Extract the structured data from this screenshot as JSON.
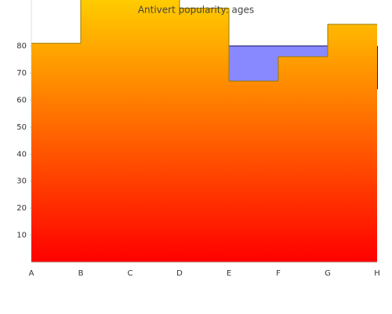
{
  "chart_data": {
    "type": "step-area",
    "title": "Antivert popularity: ages",
    "categories": [
      "A",
      "B",
      "C",
      "D",
      "E",
      "F",
      "G",
      "H"
    ],
    "series": [
      {
        "color": "#8888ff",
        "values": [
          80,
          80,
          80,
          80,
          80,
          80,
          80,
          64
        ]
      },
      {
        "color": "#ffcc00",
        "values": [
          81,
          100,
          100,
          94,
          67,
          76,
          88,
          88
        ]
      }
    ],
    "ylim": [
      0,
      97
    ],
    "yticks": [
      10,
      20,
      30,
      40,
      50,
      60,
      70,
      80
    ]
  }
}
